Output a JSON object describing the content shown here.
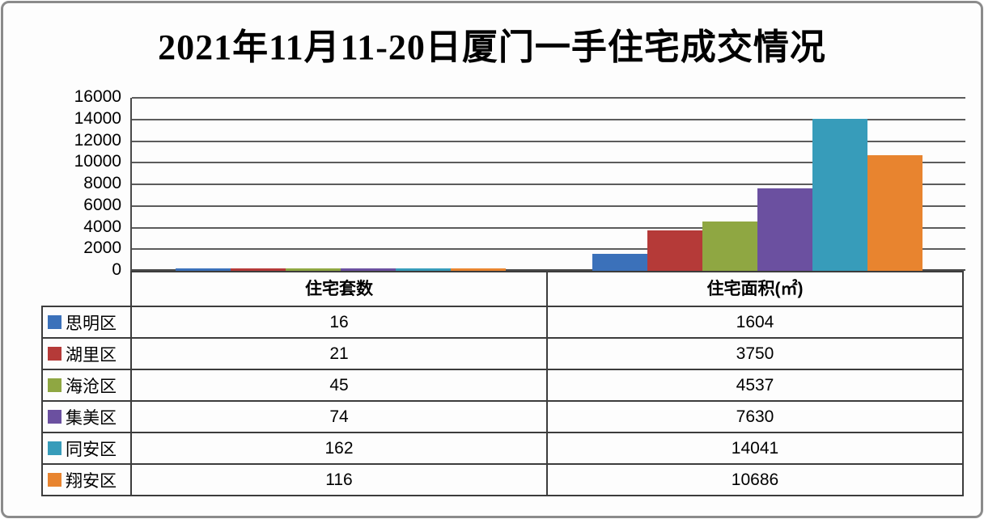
{
  "title": "2021年11月11-20日厦门一手住宅成交情况",
  "chart_data": {
    "type": "bar",
    "title": "2021年11月11-20日厦门一手住宅成交情况",
    "categories": [
      "住宅套数",
      "住宅面积(㎡)"
    ],
    "series": [
      {
        "name": "思明区",
        "color": "#3b71ba",
        "values": [
          16,
          1604
        ]
      },
      {
        "name": "湖里区",
        "color": "#b53a38",
        "values": [
          21,
          3750
        ]
      },
      {
        "name": "海沧区",
        "color": "#8fa742",
        "values": [
          45,
          4537
        ]
      },
      {
        "name": "集美区",
        "color": "#6b50a0",
        "values": [
          74,
          7630
        ]
      },
      {
        "name": "同安区",
        "color": "#379cba",
        "values": [
          162,
          14041
        ]
      },
      {
        "name": "翔安区",
        "color": "#e8842f",
        "values": [
          116,
          10686
        ]
      }
    ],
    "ylim": [
      0,
      16000
    ],
    "yticks": [
      0,
      2000,
      4000,
      6000,
      8000,
      10000,
      12000,
      14000,
      16000
    ],
    "grid": true,
    "legend_position": "left-of-table"
  },
  "table": {
    "column_headers": [
      "住宅套数",
      "住宅面积(㎡)"
    ],
    "rows": [
      {
        "label": "思明区",
        "units": "16",
        "area": "1604"
      },
      {
        "label": "湖里区",
        "units": "21",
        "area": "3750"
      },
      {
        "label": "海沧区",
        "units": "45",
        "area": "4537"
      },
      {
        "label": "集美区",
        "units": "74",
        "area": "7630"
      },
      {
        "label": "同安区",
        "units": "162",
        "area": "14041"
      },
      {
        "label": "翔安区",
        "units": "116",
        "area": "10686"
      }
    ]
  },
  "colors": {
    "panel_border": "#8b8b8b",
    "gridline": "#5c5c5c",
    "table_border": "#3c3c3c"
  }
}
